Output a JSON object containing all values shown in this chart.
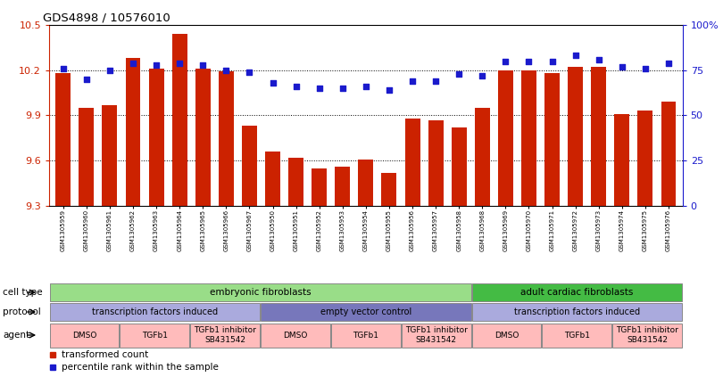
{
  "title": "GDS4898 / 10576010",
  "samples": [
    "GSM1305959",
    "GSM1305960",
    "GSM1305961",
    "GSM1305962",
    "GSM1305963",
    "GSM1305964",
    "GSM1305965",
    "GSM1305966",
    "GSM1305967",
    "GSM1305950",
    "GSM1305951",
    "GSM1305952",
    "GSM1305953",
    "GSM1305954",
    "GSM1305955",
    "GSM1305956",
    "GSM1305957",
    "GSM1305958",
    "GSM1305968",
    "GSM1305969",
    "GSM1305970",
    "GSM1305971",
    "GSM1305972",
    "GSM1305973",
    "GSM1305974",
    "GSM1305975",
    "GSM1305976"
  ],
  "transformed_count": [
    10.18,
    9.95,
    9.97,
    10.28,
    10.21,
    10.44,
    10.21,
    10.19,
    9.83,
    9.66,
    9.62,
    9.55,
    9.56,
    9.61,
    9.52,
    9.88,
    9.87,
    9.82,
    9.95,
    10.2,
    10.2,
    10.18,
    10.22,
    10.22,
    9.91,
    9.93,
    9.99
  ],
  "percentile_rank": [
    76,
    70,
    75,
    79,
    78,
    79,
    78,
    75,
    74,
    68,
    66,
    65,
    65,
    66,
    64,
    69,
    69,
    73,
    72,
    80,
    80,
    80,
    83,
    81,
    77,
    76,
    79
  ],
  "ylim_left": [
    9.3,
    10.5
  ],
  "ylim_right": [
    0,
    100
  ],
  "yticks_left": [
    9.3,
    9.6,
    9.9,
    10.2,
    10.5
  ],
  "yticks_right": [
    0,
    25,
    50,
    75,
    100
  ],
  "bar_color": "#cc2200",
  "dot_color": "#1a1acc",
  "cell_type_groups": [
    {
      "label": "embryonic fibroblasts",
      "start": 0,
      "end": 18,
      "color": "#99dd88"
    },
    {
      "label": "adult cardiac fibroblasts",
      "start": 18,
      "end": 27,
      "color": "#44bb44"
    }
  ],
  "protocol_groups": [
    {
      "label": "transcription factors induced",
      "start": 0,
      "end": 9,
      "color": "#aaaadd"
    },
    {
      "label": "empty vector control",
      "start": 9,
      "end": 18,
      "color": "#7777bb"
    },
    {
      "label": "transcription factors induced",
      "start": 18,
      "end": 27,
      "color": "#aaaadd"
    }
  ],
  "agent_groups": [
    {
      "label": "DMSO",
      "start": 0,
      "end": 3
    },
    {
      "label": "TGFb1",
      "start": 3,
      "end": 6
    },
    {
      "label": "TGFb1 inhibitor\nSB431542",
      "start": 6,
      "end": 9
    },
    {
      "label": "DMSO",
      "start": 9,
      "end": 12
    },
    {
      "label": "TGFb1",
      "start": 12,
      "end": 15
    },
    {
      "label": "TGFb1 inhibitor\nSB431542",
      "start": 15,
      "end": 18
    },
    {
      "label": "DMSO",
      "start": 18,
      "end": 21
    },
    {
      "label": "TGFb1",
      "start": 21,
      "end": 24
    },
    {
      "label": "TGFb1 inhibitor\nSB431542",
      "start": 24,
      "end": 27
    }
  ],
  "row_labels": [
    "cell type",
    "protocol",
    "agent"
  ],
  "legend_items": [
    {
      "label": "transformed count",
      "color": "#cc2200"
    },
    {
      "label": "percentile rank within the sample",
      "color": "#1a1acc"
    }
  ]
}
